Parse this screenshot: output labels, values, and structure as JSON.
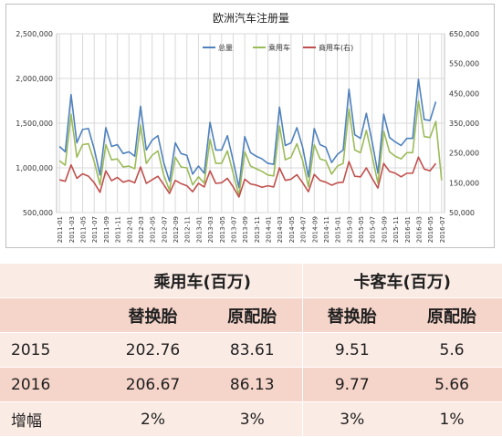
{
  "chart_data": {
    "type": "line",
    "title": "欧洲汽车注册量",
    "xlabel": "",
    "ylabel": "",
    "x": [
      "2011-01",
      "2011-02",
      "2011-03",
      "2011-04",
      "2011-05",
      "2011-06",
      "2011-07",
      "2011-08",
      "2011-09",
      "2011-10",
      "2011-11",
      "2011-12",
      "2012-01",
      "2012-02",
      "2012-03",
      "2012-04",
      "2012-05",
      "2012-06",
      "2012-07",
      "2012-08",
      "2012-09",
      "2012-10",
      "2012-11",
      "2012-12",
      "2013-01",
      "2013-02",
      "2013-03",
      "2013-04",
      "2013-05",
      "2013-06",
      "2013-07",
      "2013-08",
      "2013-09",
      "2013-10",
      "2013-11",
      "2013-12",
      "2014-01",
      "2014-02",
      "2014-03",
      "2014-04",
      "2014-05",
      "2014-06",
      "2014-07",
      "2014-08",
      "2014-09",
      "2014-10",
      "2014-11",
      "2014-12",
      "2015-01",
      "2015-02",
      "2015-03",
      "2015-04",
      "2015-05",
      "2015-06",
      "2015-07",
      "2015-08",
      "2015-09",
      "2015-10",
      "2015-11",
      "2015-12",
      "2016-01",
      "2016-02",
      "2016-03",
      "2016-04",
      "2016-05",
      "2016-06",
      "2016-07"
    ],
    "x_tick_labels": [
      "2011-01",
      "2011-03",
      "2011-05",
      "2011-07",
      "2011-09",
      "2011-11",
      "2012-01",
      "2012-03",
      "2012-05",
      "2012-07",
      "2012-09",
      "2012-11",
      "2013-01",
      "2013-03",
      "2013-05",
      "2013-07",
      "2013-09",
      "2013-11",
      "2014-01",
      "2014-03",
      "2014-05",
      "2014-07",
      "2014-09",
      "2014-11",
      "2015-01",
      "2015-03",
      "2015-05",
      "2015-07",
      "2015-09",
      "2015-11",
      "2016-01",
      "2016-03",
      "2016-05",
      "2016-07"
    ],
    "ylim": [
      500000,
      2500000
    ],
    "y_ticks": [
      "500,000",
      "1,000,000",
      "1,500,000",
      "2,000,000",
      "2,500,000"
    ],
    "y2lim": [
      50000,
      650000
    ],
    "y2_ticks": [
      "50,000",
      "150,000",
      "250,000",
      "350,000",
      "450,000",
      "550,000",
      "650,000"
    ],
    "grid": true,
    "legend_position": "top-right",
    "series": [
      {
        "name": "总量",
        "axis": "left",
        "color": "#4f81bd",
        "values": [
          1240000,
          1180000,
          1820000,
          1280000,
          1430000,
          1440000,
          1210000,
          920000,
          1450000,
          1240000,
          1260000,
          1160000,
          1180000,
          1130000,
          1690000,
          1200000,
          1310000,
          1360000,
          1060000,
          850000,
          1280000,
          1160000,
          1140000,
          930000,
          1020000,
          940000,
          1510000,
          1200000,
          1200000,
          1360000,
          1080000,
          780000,
          1350000,
          1170000,
          1130000,
          1100000,
          1050000,
          1040000,
          1680000,
          1250000,
          1280000,
          1450000,
          1230000,
          900000,
          1440000,
          1260000,
          1230000,
          1060000,
          1150000,
          1200000,
          1880000,
          1370000,
          1330000,
          1610000,
          1290000,
          940000,
          1600000,
          1340000,
          1290000,
          1250000,
          1330000,
          1330000,
          1990000,
          1540000,
          1530000,
          1740000,
          null
        ]
      },
      {
        "name": "乘用车",
        "axis": "left",
        "color": "#9bbb59",
        "values": [
          1080000,
          1030000,
          1600000,
          1120000,
          1260000,
          1270000,
          1070000,
          810000,
          1260000,
          1090000,
          1100000,
          1010000,
          1020000,
          990000,
          1480000,
          1050000,
          1140000,
          1190000,
          920000,
          750000,
          1120000,
          1010000,
          1000000,
          810000,
          900000,
          830000,
          1320000,
          1050000,
          1050000,
          1190000,
          940000,
          690000,
          1180000,
          1020000,
          990000,
          960000,
          920000,
          910000,
          1470000,
          1090000,
          1120000,
          1270000,
          1080000,
          790000,
          1260000,
          1100000,
          1080000,
          930000,
          1020000,
          1050000,
          1660000,
          1200000,
          1170000,
          1420000,
          1130000,
          830000,
          1410000,
          1180000,
          1130000,
          1100000,
          1170000,
          1170000,
          1750000,
          1350000,
          1340000,
          1520000,
          860000
        ]
      },
      {
        "name": "商用车(右)",
        "axis": "right",
        "color": "#c0504d",
        "values": [
          160000,
          155000,
          210000,
          165000,
          180000,
          172000,
          150000,
          118000,
          190000,
          157000,
          168000,
          152000,
          158000,
          150000,
          203000,
          148000,
          160000,
          172000,
          144000,
          114000,
          158000,
          147000,
          140000,
          120000,
          148000,
          136000,
          190000,
          148000,
          150000,
          165000,
          136000,
          102000,
          162000,
          146000,
          142000,
          135000,
          140000,
          136000,
          200000,
          158000,
          162000,
          177000,
          150000,
          120000,
          178000,
          158000,
          152000,
          142000,
          150000,
          152000,
          221000,
          172000,
          170000,
          200000,
          165000,
          132000,
          215000,
          188000,
          182000,
          170000,
          182000,
          182000,
          236000,
          196000,
          190000,
          215000,
          null
        ]
      }
    ]
  },
  "table": {
    "groups": [
      "乘用车(百万)",
      "卡客车(百万)"
    ],
    "subheaders": [
      "替换胎",
      "原配胎",
      "替换胎",
      "原配胎"
    ],
    "rows": [
      {
        "label": "2015",
        "cells": [
          "202.76",
          "83.61",
          "9.51",
          "5.6"
        ]
      },
      {
        "label": "2016",
        "cells": [
          "206.67",
          "86.13",
          "9.77",
          "5.66"
        ]
      },
      {
        "label": "增幅",
        "cells": [
          "2%",
          "3%",
          "3%",
          "1%"
        ]
      }
    ]
  },
  "colors": {
    "grid": "#d9d9d9",
    "table_odd": "#f5d4c9",
    "table_even": "#fbebe5"
  }
}
